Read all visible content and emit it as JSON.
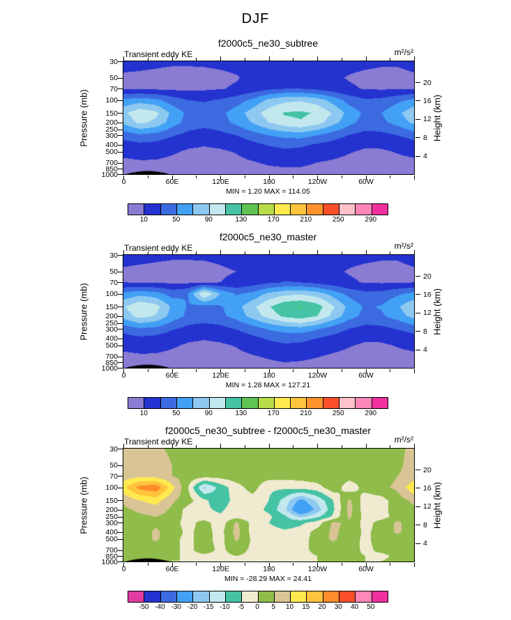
{
  "page_title": "DJF",
  "axis": {
    "left_label": "Pressure (mb)",
    "right_label": "Height (km)"
  },
  "chart_data": [
    {
      "type": "contour",
      "title": "f2000c5_ne30_subtree",
      "field_label": "Transient eddy KE",
      "units_label": "m²/s²",
      "min": 1.2,
      "max": 114.05,
      "min_max_label": "MIN =  1.20  MAX = 114.05",
      "x_tick_lons": [
        0,
        60,
        120,
        180,
        240,
        300
      ],
      "x_tick_labels": [
        "0",
        "60E",
        "120E",
        "180",
        "120W",
        "60W"
      ],
      "x_minor_step": 30,
      "height_ticks": [
        20,
        16,
        12,
        8,
        4
      ],
      "pressures": [
        30,
        50,
        70,
        100,
        150,
        200,
        250,
        300,
        400,
        500,
        700,
        850,
        1000
      ],
      "lons": [
        0,
        20,
        40,
        60,
        80,
        100,
        120,
        140,
        160,
        180,
        200,
        220,
        240,
        260,
        280,
        300,
        320,
        340,
        360
      ],
      "values": [
        [
          14,
          14,
          13,
          12,
          12,
          12,
          13,
          14,
          16,
          18,
          18,
          17,
          16,
          15,
          14,
          13,
          12,
          12,
          14
        ],
        [
          8,
          7,
          6,
          5,
          5,
          6,
          7,
          9,
          14,
          18,
          20,
          18,
          15,
          12,
          9,
          7,
          6,
          6,
          8
        ],
        [
          9,
          8,
          7,
          6,
          6,
          7,
          9,
          12,
          18,
          26,
          30,
          30,
          26,
          18,
          12,
          9,
          8,
          8,
          9
        ],
        [
          55,
          60,
          55,
          40,
          30,
          28,
          32,
          40,
          55,
          75,
          85,
          88,
          80,
          62,
          42,
          32,
          35,
          45,
          55
        ],
        [
          85,
          105,
          95,
          65,
          45,
          40,
          45,
          60,
          80,
          100,
          112,
          114,
          108,
          88,
          62,
          46,
          50,
          65,
          85
        ],
        [
          75,
          95,
          85,
          60,
          42,
          38,
          42,
          55,
          72,
          90,
          104,
          108,
          98,
          78,
          56,
          42,
          45,
          58,
          75
        ],
        [
          55,
          68,
          62,
          45,
          32,
          28,
          32,
          42,
          55,
          68,
          78,
          82,
          72,
          56,
          42,
          32,
          34,
          42,
          55
        ],
        [
          38,
          46,
          42,
          32,
          24,
          20,
          24,
          30,
          40,
          50,
          56,
          58,
          50,
          40,
          29,
          22,
          24,
          30,
          38
        ],
        [
          22,
          26,
          24,
          18,
          13,
          11,
          13,
          17,
          25,
          32,
          36,
          34,
          28,
          22,
          16,
          12,
          13,
          17,
          22
        ],
        [
          14,
          17,
          16,
          12,
          8,
          7,
          8,
          11,
          17,
          22,
          26,
          24,
          19,
          15,
          11,
          8,
          8,
          11,
          14
        ],
        [
          7,
          8,
          8,
          6,
          4,
          4,
          4,
          6,
          9,
          12,
          14,
          13,
          10,
          8,
          6,
          4,
          5,
          6,
          7
        ],
        [
          4,
          5,
          5,
          4,
          3,
          3,
          3,
          4,
          6,
          8,
          9,
          9,
          7,
          5,
          4,
          3,
          3,
          4,
          4
        ],
        [
          2,
          3,
          3,
          2,
          2,
          2,
          2,
          3,
          4,
          5,
          6,
          6,
          5,
          4,
          3,
          2,
          2,
          3,
          2
        ]
      ],
      "levels": [
        10,
        30,
        50,
        70,
        90,
        110,
        130,
        150,
        170,
        190,
        210,
        230,
        250,
        270,
        290
      ],
      "palette": [
        "#8a7bd3",
        "#2433cf",
        "#3c6ae1",
        "#42a0f5",
        "#8cc8f0",
        "#c2e8ee",
        "#45c3a4",
        "#5fc454",
        "#b8dc48",
        "#ffe94e",
        "#ffc43c",
        "#ff942e",
        "#fb4f2a",
        "#ffc0ca",
        "#ff86b8",
        "#f0309e"
      ],
      "colorbar_labels": [
        "10",
        "50",
        "90",
        "130",
        "170",
        "210",
        "250",
        "290"
      ],
      "colorbar_label_indices": [
        0,
        2,
        4,
        6,
        8,
        10,
        12,
        14
      ],
      "terrain": [
        [
          3,
          57
        ]
      ]
    },
    {
      "type": "contour",
      "title": "f2000c5_ne30_master",
      "field_label": "Transient eddy KE",
      "units_label": "m²/s²",
      "min": 1.28,
      "max": 127.21,
      "min_max_label": "MIN =  1.28  MAX = 127.21",
      "x_tick_lons": [
        0,
        60,
        120,
        180,
        240,
        300
      ],
      "x_tick_labels": [
        "0",
        "60E",
        "120E",
        "180",
        "120W",
        "60W"
      ],
      "x_minor_step": 30,
      "height_ticks": [
        20,
        16,
        12,
        8,
        4
      ],
      "pressures": [
        30,
        50,
        70,
        100,
        150,
        200,
        250,
        300,
        400,
        500,
        700,
        850,
        1000
      ],
      "lons": [
        0,
        20,
        40,
        60,
        80,
        100,
        120,
        140,
        160,
        180,
        200,
        220,
        240,
        260,
        280,
        300,
        320,
        340,
        360
      ],
      "values": [
        [
          15,
          14,
          13,
          12,
          12,
          12,
          13,
          15,
          17,
          19,
          20,
          18,
          16,
          15,
          14,
          13,
          12,
          12,
          15
        ],
        [
          8,
          7,
          6,
          5,
          5,
          6,
          8,
          10,
          15,
          19,
          22,
          20,
          16,
          12,
          9,
          7,
          6,
          6,
          8
        ],
        [
          10,
          9,
          8,
          7,
          7,
          8,
          10,
          14,
          20,
          27,
          31,
          30,
          25,
          17,
          12,
          9,
          8,
          8,
          10
        ],
        [
          55,
          64,
          58,
          42,
          50,
          112,
          68,
          48,
          55,
          75,
          85,
          88,
          80,
          62,
          44,
          35,
          37,
          47,
          55
        ],
        [
          88,
          108,
          98,
          66,
          48,
          42,
          48,
          62,
          85,
          108,
          126,
          131,
          120,
          92,
          64,
          47,
          52,
          67,
          88
        ],
        [
          78,
          98,
          88,
          62,
          45,
          40,
          45,
          58,
          78,
          98,
          115,
          122,
          110,
          84,
          58,
          44,
          47,
          60,
          78
        ],
        [
          56,
          70,
          64,
          46,
          33,
          30,
          33,
          43,
          57,
          72,
          84,
          90,
          78,
          58,
          43,
          33,
          35,
          43,
          56
        ],
        [
          38,
          47,
          43,
          32,
          24,
          21,
          24,
          31,
          41,
          52,
          58,
          61,
          52,
          41,
          29,
          22,
          24,
          31,
          38
        ],
        [
          22,
          26,
          24,
          18,
          13,
          11,
          13,
          17,
          25,
          33,
          38,
          36,
          30,
          23,
          16,
          12,
          13,
          17,
          22
        ],
        [
          14,
          17,
          16,
          12,
          8,
          7,
          8,
          11,
          17,
          23,
          27,
          26,
          20,
          15,
          11,
          8,
          8,
          11,
          14
        ],
        [
          7,
          8,
          8,
          6,
          4,
          4,
          4,
          6,
          9,
          12,
          15,
          14,
          11,
          8,
          6,
          4,
          5,
          6,
          7
        ],
        [
          4,
          5,
          5,
          4,
          3,
          3,
          3,
          4,
          6,
          8,
          10,
          9,
          7,
          5,
          4,
          3,
          3,
          4,
          4
        ],
        [
          2,
          3,
          3,
          2,
          2,
          2,
          2,
          3,
          4,
          5,
          6,
          6,
          5,
          4,
          3,
          2,
          2,
          3,
          2
        ]
      ],
      "levels": [
        10,
        30,
        50,
        70,
        90,
        110,
        130,
        150,
        170,
        190,
        210,
        230,
        250,
        270,
        290
      ],
      "palette": [
        "#8a7bd3",
        "#2433cf",
        "#3c6ae1",
        "#42a0f5",
        "#8cc8f0",
        "#c2e8ee",
        "#45c3a4",
        "#5fc454",
        "#b8dc48",
        "#ffe94e",
        "#ffc43c",
        "#ff942e",
        "#fb4f2a",
        "#ffc0ca",
        "#ff86b8",
        "#f0309e"
      ],
      "colorbar_labels": [
        "10",
        "50",
        "90",
        "130",
        "170",
        "210",
        "250",
        "290"
      ],
      "colorbar_label_indices": [
        0,
        2,
        4,
        6,
        8,
        10,
        12,
        14
      ],
      "terrain": [
        [
          3,
          57
        ]
      ]
    },
    {
      "type": "contour",
      "title": "f2000c5_ne30_subtree - f2000c5_ne30_master",
      "field_label": "Transient eddy KE",
      "units_label": "m²/s²",
      "min": -28.29,
      "max": 24.41,
      "min_max_label": "MIN = -28.29  MAX =  24.41",
      "x_tick_lons": [
        0,
        60,
        120,
        180,
        240,
        300
      ],
      "x_tick_labels": [
        "0",
        "60E",
        "120E",
        "180",
        "120W",
        "60W"
      ],
      "x_minor_step": 30,
      "height_ticks": [
        20,
        16,
        12,
        8,
        4
      ],
      "pressures": [
        30,
        50,
        70,
        100,
        150,
        200,
        250,
        300,
        400,
        500,
        700,
        850,
        1000
      ],
      "lons": [
        0,
        20,
        40,
        60,
        80,
        100,
        120,
        140,
        160,
        180,
        200,
        220,
        240,
        260,
        280,
        300,
        320,
        340,
        360
      ],
      "values": [
        [
          6,
          7,
          6,
          4,
          3,
          2,
          2,
          3,
          3,
          2,
          3,
          3,
          2,
          3,
          2,
          2,
          3,
          4,
          6
        ],
        [
          7,
          9,
          8,
          5,
          3,
          2,
          2,
          3,
          3,
          2,
          2,
          3,
          2,
          3,
          2,
          2,
          3,
          4,
          7
        ],
        [
          7,
          9,
          8,
          5,
          3,
          2,
          2,
          3,
          3,
          2,
          2,
          2,
          3,
          3,
          2,
          2,
          3,
          5,
          7
        ],
        [
          14,
          22,
          24,
          12,
          0,
          -16,
          -8,
          -2,
          2,
          -4,
          -4,
          -3,
          -2,
          3,
          -3,
          2,
          4,
          6,
          14
        ],
        [
          6,
          10,
          12,
          6,
          2,
          -4,
          -8,
          -3,
          -2,
          -5,
          -12,
          -22,
          -14,
          -5,
          6,
          -3,
          -2,
          3,
          6
        ],
        [
          4,
          6,
          8,
          4,
          -2,
          -4,
          -6,
          -2,
          -3,
          -6,
          -14,
          -28,
          -18,
          -6,
          7,
          -3,
          -2,
          3,
          4
        ],
        [
          3,
          4,
          5,
          3,
          -2,
          -3,
          -4,
          -2,
          -3,
          -4,
          -9,
          -16,
          -11,
          -4,
          6,
          -2,
          -2,
          2,
          3
        ],
        [
          2,
          3,
          4,
          2,
          -2,
          2,
          -3,
          6,
          -2,
          -5,
          -8,
          -6,
          -3,
          6,
          4,
          -2,
          2,
          6,
          2
        ],
        [
          2,
          2,
          6,
          2,
          -1,
          2,
          -2,
          7,
          -2,
          -3,
          -4,
          -3,
          2,
          6,
          3,
          -1,
          2,
          6,
          2
        ],
        [
          2,
          2,
          6,
          1,
          -1,
          2,
          -2,
          6,
          -1,
          -2,
          -3,
          -2,
          2,
          6,
          2,
          -1,
          2,
          3,
          2
        ],
        [
          1,
          2,
          2,
          1,
          -1,
          2,
          -1,
          2,
          -1,
          -1,
          -2,
          -1,
          1,
          2,
          2,
          -1,
          1,
          2,
          1
        ],
        [
          1,
          1,
          1,
          1,
          -1,
          -1,
          -1,
          0,
          -1,
          -1,
          -1,
          -1,
          0,
          1,
          1,
          0,
          -1,
          1,
          1
        ],
        [
          1,
          1,
          1,
          0,
          0,
          -1,
          -1,
          0,
          0,
          -1,
          -1,
          0,
          0,
          1,
          1,
          0,
          0,
          1,
          1
        ]
      ],
      "levels": [
        -50,
        -40,
        -30,
        -20,
        -15,
        -10,
        -5,
        0,
        5,
        10,
        15,
        20,
        30,
        40,
        50
      ],
      "palette": [
        "#e13aa0",
        "#2433cf",
        "#3c6ae1",
        "#42a0f5",
        "#8cc8f0",
        "#c2e8ee",
        "#45c3a4",
        "#f0ead0",
        "#8fbc4a",
        "#d8c494",
        "#ffe94e",
        "#ffc43c",
        "#ff8c2b",
        "#fb4f2a",
        "#ff86b8",
        "#f0309e"
      ],
      "colorbar_labels": [
        "-50",
        "-40",
        "-30",
        "-20",
        "-15",
        "-10",
        "-5",
        "0",
        "5",
        "10",
        "15",
        "20",
        "30",
        "40",
        "50"
      ],
      "colorbar_label_indices": [
        0,
        1,
        2,
        3,
        4,
        5,
        6,
        7,
        8,
        9,
        10,
        11,
        12,
        13,
        14
      ],
      "terrain": [
        [
          3,
          57
        ]
      ]
    }
  ]
}
